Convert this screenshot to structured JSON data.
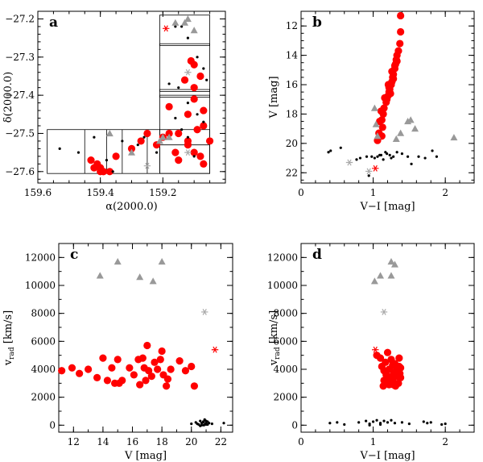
{
  "colors": {
    "member": "#ff0000",
    "background_galaxy": "#999999",
    "star": "#000000",
    "member_star_symbol": "#ff0000",
    "gray_star_symbol": "#aaaaaa"
  },
  "chart_data": [
    {
      "type": "scatter",
      "panel": "a",
      "xlabel": "α(2000.0)",
      "ylabel": "δ(2000.0)",
      "xlim": [
        159.6,
        159.0
      ],
      "ylim": [
        -27.63,
        -27.18
      ],
      "xticks": [
        159.6,
        159.4,
        159.2
      ],
      "xticklabels": [
        "159.6",
        "159.4",
        "159.2"
      ],
      "yticks": [
        -27.2,
        -27.3,
        -27.4,
        -27.5,
        -27.6
      ],
      "yticklabels": [
        "−27.2",
        "−27.3",
        "−27.4",
        "−27.5",
        "−27.6"
      ],
      "fields": [
        {
          "x0": 159.21,
          "x1": 159.05,
          "y0": -27.19,
          "y1": -27.605
        },
        {
          "x0": 159.57,
          "x1": 159.05,
          "y0": -27.49,
          "y1": -27.605
        },
        {
          "x0": 159.21,
          "x1": 159.05,
          "y0": -27.27,
          "y1": -27.265
        },
        {
          "x0": 159.21,
          "x1": 159.05,
          "y0": -27.39,
          "y1": -27.385
        },
        {
          "x0": 159.21,
          "x1": 159.05,
          "y0": -27.405,
          "y1": -27.4
        }
      ],
      "dividers_x": [
        159.45,
        159.38,
        159.33,
        159.25,
        159.21
      ],
      "dividers_y": [
        -27.53
      ],
      "series": [
        {
          "marker": "dot-red",
          "x": [
            159.11,
            159.1,
            159.08,
            159.13,
            159.1,
            159.18,
            159.07,
            159.12,
            159.09,
            159.15,
            159.12,
            159.05,
            159.07,
            159.16,
            159.18,
            159.1,
            159.08,
            159.12,
            159.07,
            159.15,
            159.2,
            159.22,
            159.27,
            159.3,
            159.25,
            159.43,
            159.42,
            159.4,
            159.39,
            159.41,
            159.4,
            159.35,
            159.37,
            159.1
          ],
          "y": [
            -27.31,
            -27.32,
            -27.35,
            -27.36,
            -27.41,
            -27.43,
            -27.44,
            -27.45,
            -27.49,
            -27.5,
            -27.52,
            -27.52,
            -27.48,
            -27.55,
            -27.5,
            -27.55,
            -27.56,
            -27.53,
            -27.58,
            -27.57,
            -27.51,
            -27.53,
            -27.52,
            -27.54,
            -27.5,
            -27.57,
            -27.59,
            -27.6,
            -27.6,
            -27.58,
            -27.59,
            -27.56,
            -27.6,
            -27.38
          ]
        },
        {
          "marker": "dot-black",
          "x": [
            159.53,
            159.47,
            159.42,
            159.33,
            159.3,
            159.26,
            159.22,
            159.18,
            159.16,
            159.14,
            159.12,
            159.09,
            159.07,
            159.06,
            159.15,
            159.18,
            159.12,
            159.09,
            159.07,
            159.16,
            159.12,
            159.14,
            159.1,
            159.38,
            159.36,
            159.28
          ],
          "y": [
            -27.54,
            -27.55,
            -27.51,
            -27.52,
            -27.55,
            -27.51,
            -27.55,
            -27.51,
            -27.22,
            -27.22,
            -27.25,
            -27.3,
            -27.33,
            -27.36,
            -27.38,
            -27.37,
            -27.42,
            -27.45,
            -27.47,
            -27.46,
            -27.51,
            -27.49,
            -27.56,
            -27.57,
            -27.6,
            -27.53
          ]
        },
        {
          "marker": "triangle-gray",
          "x": [
            159.12,
            159.13,
            159.16,
            159.1,
            159.2,
            159.18,
            159.37,
            159.3,
            159.21
          ],
          "y": [
            -27.2,
            -27.21,
            -27.21,
            -27.23,
            -27.51,
            -27.51,
            -27.5,
            -27.55,
            -27.52
          ]
        },
        {
          "marker": "star-red",
          "x": [
            159.19
          ],
          "y": [
            -27.225
          ]
        },
        {
          "marker": "star-gray",
          "x": [
            159.12,
            159.12,
            159.25
          ],
          "y": [
            -27.34,
            -27.55,
            -27.585
          ]
        }
      ]
    },
    {
      "type": "scatter",
      "panel": "b",
      "xlabel": "V−I [mag]",
      "ylabel": "V [mag]",
      "xlim": [
        0,
        2.4
      ],
      "ylim": [
        22.7,
        11.0
      ],
      "y_inverted": true,
      "xticks": [
        0,
        1,
        2
      ],
      "xticklabels": [
        "0",
        "1",
        "2"
      ],
      "yticks": [
        12,
        14,
        16,
        18,
        20,
        22
      ],
      "yticklabels": [
        "12",
        "14",
        "16",
        "18",
        "20",
        "22"
      ],
      "series": [
        {
          "marker": "dot-red",
          "x": [
            1.38,
            1.38,
            1.37,
            1.35,
            1.33,
            1.32,
            1.31,
            1.3,
            1.28,
            1.27,
            1.26,
            1.25,
            1.23,
            1.22,
            1.2,
            1.18,
            1.15,
            1.14,
            1.12,
            1.3,
            1.21,
            1.16,
            1.11,
            1.09,
            1.08,
            1.06,
            1.26,
            1.33,
            1.19,
            1.24,
            1.13,
            1.12,
            1.28,
            1.22
          ],
          "y": [
            11.3,
            12.4,
            13.2,
            13.7,
            14.0,
            14.3,
            14.6,
            14.9,
            15.3,
            15.5,
            15.8,
            16.0,
            16.3,
            16.5,
            16.8,
            17.2,
            17.6,
            18.0,
            18.4,
            14.7,
            16.0,
            16.9,
            17.8,
            18.5,
            19.3,
            19.8,
            15.1,
            14.4,
            17.0,
            16.6,
            18.9,
            19.5,
            15.6,
            16.2
          ]
        },
        {
          "marker": "dot-black",
          "x": [
            0.38,
            0.41,
            0.55,
            0.77,
            0.82,
            0.91,
            0.98,
            1.02,
            1.06,
            1.11,
            1.14,
            1.19,
            1.23,
            1.28,
            1.33,
            1.4,
            1.48,
            1.63,
            1.72,
            1.82,
            1.88,
            1.53,
            1.17,
            1.09,
            1.25,
            0.94
          ],
          "y": [
            20.6,
            20.5,
            20.3,
            21.1,
            21.0,
            20.9,
            20.9,
            21.0,
            20.9,
            20.8,
            21.1,
            20.7,
            20.8,
            20.9,
            20.6,
            20.7,
            20.9,
            20.9,
            21.0,
            20.5,
            20.9,
            21.4,
            20.6,
            20.8,
            21.0,
            22.2
          ]
        },
        {
          "marker": "triangle-gray",
          "x": [
            1.02,
            1.04,
            1.06,
            1.32,
            1.38,
            1.48,
            1.52,
            1.58,
            2.12
          ],
          "y": [
            17.6,
            18.7,
            19.5,
            19.7,
            19.3,
            18.5,
            18.4,
            19.0,
            19.6
          ]
        },
        {
          "marker": "star-red",
          "x": [
            1.03
          ],
          "y": [
            21.7
          ]
        },
        {
          "marker": "star-gray",
          "x": [
            0.67,
            0.94
          ],
          "y": [
            21.3,
            21.9
          ]
        }
      ]
    },
    {
      "type": "scatter",
      "panel": "c",
      "xlabel": "V [mag]",
      "ylabel": "v_rad [km/s]",
      "xlim": [
        11.0,
        22.8
      ],
      "ylim": [
        -500,
        13000
      ],
      "xticks": [
        12,
        14,
        16,
        18,
        20,
        22
      ],
      "xticklabels": [
        "12",
        "14",
        "16",
        "18",
        "20",
        "22"
      ],
      "yticks": [
        0,
        2000,
        4000,
        6000,
        8000,
        10000,
        12000
      ],
      "yticklabels": [
        "0",
        "2000",
        "4000",
        "6000",
        "8000",
        "10000",
        "12000"
      ],
      "series": [
        {
          "marker": "dot-red",
          "x": [
            11.2,
            11.9,
            12.4,
            13.0,
            13.6,
            14.0,
            14.3,
            14.6,
            14.8,
            15.0,
            15.3,
            15.8,
            16.1,
            16.4,
            16.7,
            16.8,
            17.0,
            17.1,
            17.3,
            17.5,
            17.7,
            18.0,
            18.1,
            18.3,
            18.4,
            18.6,
            19.2,
            19.6,
            20.2,
            20.0,
            16.5,
            15.1,
            17.9,
            16.9
          ],
          "y": [
            3900,
            4100,
            3700,
            4000,
            3400,
            4800,
            3200,
            4100,
            3000,
            4700,
            3200,
            4100,
            3600,
            4700,
            4800,
            4100,
            5700,
            3900,
            3500,
            4500,
            4000,
            5300,
            3600,
            2800,
            3300,
            4000,
            4600,
            3900,
            2800,
            4200,
            2900,
            3000,
            4700,
            3200
          ]
        },
        {
          "marker": "dot-black",
          "x": [
            20.0,
            20.3,
            20.5,
            20.6,
            20.7,
            20.8,
            20.85,
            20.9,
            20.95,
            21.0,
            21.1,
            21.2,
            21.4,
            20.6,
            20.9,
            21.0,
            22.2,
            20.8,
            21.1,
            20.4,
            20.7,
            21.0
          ],
          "y": [
            100,
            200,
            50,
            300,
            150,
            250,
            0,
            350,
            100,
            200,
            50,
            150,
            100,
            -50,
            400,
            300,
            150,
            200,
            250,
            100,
            0,
            50
          ]
        },
        {
          "marker": "triangle-gray",
          "x": [
            13.8,
            15.0,
            16.5,
            17.4,
            18.0
          ],
          "y": [
            10700,
            11700,
            10600,
            10300,
            11700
          ]
        },
        {
          "marker": "star-red",
          "x": [
            21.6
          ],
          "y": [
            5400
          ]
        },
        {
          "marker": "star-gray",
          "x": [
            20.9
          ],
          "y": [
            8100
          ]
        }
      ]
    },
    {
      "type": "scatter",
      "panel": "d",
      "xlabel": "V−I [mag]",
      "ylabel": "v_rad [km/s]",
      "xlim": [
        0,
        2.4
      ],
      "ylim": [
        -500,
        13000
      ],
      "xticks": [
        0,
        1,
        2
      ],
      "xticklabels": [
        "0",
        "1",
        "2"
      ],
      "yticks": [
        0,
        2000,
        4000,
        6000,
        8000,
        10000,
        12000
      ],
      "yticklabels": [
        "0",
        "2000",
        "4000",
        "6000",
        "8000",
        "10000",
        "12000"
      ],
      "series": [
        {
          "marker": "dot-red",
          "x": [
            1.05,
            1.1,
            1.12,
            1.14,
            1.15,
            1.17,
            1.18,
            1.2,
            1.22,
            1.23,
            1.25,
            1.26,
            1.27,
            1.28,
            1.3,
            1.31,
            1.33,
            1.34,
            1.35,
            1.36,
            1.37,
            1.38,
            1.2,
            1.25,
            1.3,
            1.15,
            1.32,
            1.28,
            1.22,
            1.36,
            1.18,
            1.33,
            1.27,
            1.38
          ],
          "y": [
            5000,
            4800,
            4200,
            2800,
            3900,
            4500,
            3600,
            3300,
            2900,
            4000,
            4700,
            3500,
            4300,
            3100,
            3800,
            2800,
            4100,
            3500,
            3000,
            4800,
            3700,
            3400,
            5200,
            3000,
            4400,
            3200,
            3600,
            2900,
            4000,
            4200,
            3000,
            3800,
            3200,
            4100
          ]
        },
        {
          "marker": "dot-black",
          "x": [
            0.4,
            0.5,
            0.6,
            0.8,
            0.9,
            0.95,
            1.0,
            1.05,
            1.1,
            1.15,
            1.2,
            1.25,
            1.3,
            1.4,
            1.5,
            1.7,
            1.75,
            1.8,
            1.95,
            2.0,
            1.1,
            0.95
          ],
          "y": [
            150,
            200,
            50,
            200,
            300,
            100,
            250,
            350,
            150,
            300,
            200,
            350,
            150,
            200,
            100,
            250,
            150,
            200,
            50,
            100,
            50,
            0
          ]
        },
        {
          "marker": "triangle-gray",
          "x": [
            1.02,
            1.1,
            1.25,
            1.3,
            1.25
          ],
          "y": [
            10300,
            10700,
            11700,
            11500,
            10700
          ]
        },
        {
          "marker": "star-red",
          "x": [
            1.03
          ],
          "y": [
            5400
          ]
        },
        {
          "marker": "star-gray",
          "x": [
            1.15
          ],
          "y": [
            8100
          ]
        }
      ]
    }
  ]
}
